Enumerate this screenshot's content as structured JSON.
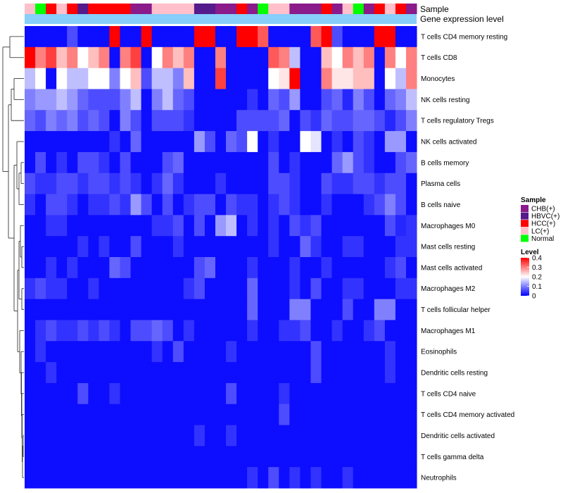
{
  "chart_data": {
    "type": "heatmap",
    "title": "",
    "annotation_tracks": [
      "Sample",
      "Gene expression level"
    ],
    "rows": [
      "T cells CD4 memory resting",
      "T cells CD8",
      "Monocytes",
      "NK cells resting",
      "T cells regulatory  Tregs",
      "NK cells activated",
      "B cells memory",
      "Plasma cells",
      "B cells naive",
      "Macrophages M0",
      "Mast cells resting",
      "Mast cells activated",
      "Macrophages M2",
      "T cells follicular helper",
      "Macrophages M1",
      "Eosinophils",
      "Dendritic cells resting",
      "T cells CD4 naive",
      "T cells CD4 memory activated",
      "Dendritic cells activated",
      "T cells gamma delta",
      "Neutrophils"
    ],
    "sample_groups": [
      "LC(+)",
      "Normal",
      "HCC(+)",
      "LC(+)",
      "HCC(+)",
      "HBVC(+)",
      "HCC(+)",
      "HCC(+)",
      "HCC(+)",
      "HCC(+)",
      "CHB(+)",
      "CHB(+)",
      "LC(+)",
      "LC(+)",
      "LC(+)",
      "LC(+)",
      "HBVC(+)",
      "HBVC(+)",
      "CHB(+)",
      "CHB(+)",
      "HCC(+)",
      "CHB(+)",
      "Normal",
      "LC(+)",
      "LC(+)",
      "CHB(+)",
      "CHB(+)",
      "CHB(+)",
      "HCC(+)",
      "CHB(+)",
      "LC(+)",
      "Normal",
      "CHB(+)",
      "HCC(+)",
      "LC(+)",
      "HCC(+)",
      "CHB(+)"
    ],
    "values": [
      [
        0.01,
        0.01,
        0.01,
        0.01,
        0.06,
        0.01,
        0.01,
        0.01,
        0.4,
        0.01,
        0.01,
        0.4,
        0.01,
        0.01,
        0.01,
        0.01,
        0.4,
        0.4,
        0.01,
        0.01,
        0.4,
        0.4,
        0.33,
        0.01,
        0.01,
        0.01,
        0.01,
        0.33,
        0.4,
        0.06,
        0.01,
        0.01,
        0.01,
        0.4,
        0.4,
        0.01,
        0.01
      ],
      [
        0.4,
        0.3,
        0.35,
        0.25,
        0.3,
        0.2,
        0.25,
        0.3,
        0.01,
        0.3,
        0.35,
        0.01,
        0.2,
        0.3,
        0.25,
        0.3,
        0.01,
        0.01,
        0.3,
        0.01,
        0.01,
        0.01,
        0.01,
        0.33,
        0.3,
        0.15,
        0.01,
        0.01,
        0.25,
        0.2,
        0.3,
        0.25,
        0.3,
        0.01,
        0.3,
        0.2,
        0.3
      ],
      [
        0.15,
        0.2,
        0.01,
        0.2,
        0.15,
        0.15,
        0.2,
        0.2,
        0.1,
        0.2,
        0.25,
        0.06,
        0.15,
        0.15,
        0.1,
        0.25,
        0.01,
        0.01,
        0.35,
        0.01,
        0.01,
        0.01,
        0.01,
        0.2,
        0.22,
        0.4,
        0.01,
        0.01,
        0.3,
        0.22,
        0.22,
        0.25,
        0.25,
        0.01,
        0.2,
        0.15,
        0.3
      ],
      [
        0.1,
        0.12,
        0.12,
        0.15,
        0.12,
        0.08,
        0.06,
        0.06,
        0.06,
        0.1,
        0.15,
        0.01,
        0.1,
        0.15,
        0.08,
        0.06,
        0.01,
        0.01,
        0.01,
        0.01,
        0.01,
        0.04,
        0.01,
        0.08,
        0.06,
        0.12,
        0.01,
        0.01,
        0.06,
        0.08,
        0.03,
        0.1,
        0.06,
        0.01,
        0.08,
        0.1,
        0.15
      ],
      [
        0.08,
        0.06,
        0.1,
        0.08,
        0.1,
        0.06,
        0.08,
        0.06,
        0.01,
        0.1,
        0.06,
        0.01,
        0.06,
        0.06,
        0.06,
        0.04,
        0.01,
        0.01,
        0.01,
        0.01,
        0.06,
        0.06,
        0.06,
        0.06,
        0.08,
        0.01,
        0.06,
        0.04,
        0.08,
        0.06,
        0.06,
        0.08,
        0.08,
        0.06,
        0.03,
        0.06,
        0.1
      ],
      [
        0.01,
        0.01,
        0.01,
        0.01,
        0.01,
        0.01,
        0.01,
        0.01,
        0.04,
        0.01,
        0.08,
        0.01,
        0.01,
        0.01,
        0.01,
        0.01,
        0.12,
        0.06,
        0.01,
        0.08,
        0.06,
        0.2,
        0.01,
        0.04,
        0.01,
        0.01,
        0.2,
        0.18,
        0.01,
        0.04,
        0.01,
        0.06,
        0.04,
        0.01,
        0.12,
        0.12,
        0.01
      ],
      [
        0.01,
        0.06,
        0.01,
        0.04,
        0.01,
        0.06,
        0.06,
        0.04,
        0.01,
        0.06,
        0.01,
        0.01,
        0.01,
        0.06,
        0.08,
        0.01,
        0.01,
        0.01,
        0.01,
        0.01,
        0.01,
        0.01,
        0.01,
        0.06,
        0.01,
        0.04,
        0.01,
        0.01,
        0.01,
        0.08,
        0.12,
        0.06,
        0.04,
        0.01,
        0.01,
        0.06,
        0.08
      ],
      [
        0.06,
        0.04,
        0.04,
        0.06,
        0.06,
        0.04,
        0.06,
        0.06,
        0.04,
        0.06,
        0.04,
        0.01,
        0.04,
        0.08,
        0.04,
        0.01,
        0.01,
        0.01,
        0.04,
        0.01,
        0.01,
        0.01,
        0.01,
        0.06,
        0.06,
        0.04,
        0.01,
        0.01,
        0.06,
        0.04,
        0.04,
        0.06,
        0.06,
        0.04,
        0.06,
        0.06,
        0.01
      ],
      [
        0.04,
        0.01,
        0.06,
        0.06,
        0.04,
        0.01,
        0.04,
        0.04,
        0.06,
        0.04,
        0.12,
        0.06,
        0.01,
        0.06,
        0.01,
        0.04,
        0.06,
        0.06,
        0.01,
        0.06,
        0.04,
        0.04,
        0.01,
        0.04,
        0.06,
        0.04,
        0.01,
        0.01,
        0.04,
        0.01,
        0.01,
        0.01,
        0.04,
        0.06,
        0.1,
        0.06,
        0.01
      ],
      [
        0.01,
        0.01,
        0.04,
        0.04,
        0.01,
        0.01,
        0.01,
        0.01,
        0.01,
        0.01,
        0.01,
        0.01,
        0.04,
        0.04,
        0.06,
        0.01,
        0.06,
        0.01,
        0.12,
        0.15,
        0.01,
        0.04,
        0.01,
        0.04,
        0.01,
        0.06,
        0.04,
        0.06,
        0.01,
        0.01,
        0.01,
        0.01,
        0.01,
        0.01,
        0.06,
        0.03,
        0.04
      ],
      [
        0.01,
        0.01,
        0.01,
        0.01,
        0.01,
        0.04,
        0.01,
        0.04,
        0.01,
        0.01,
        0.06,
        0.01,
        0.01,
        0.01,
        0.04,
        0.01,
        0.01,
        0.01,
        0.01,
        0.01,
        0.01,
        0.01,
        0.01,
        0.04,
        0.01,
        0.01,
        0.08,
        0.04,
        0.01,
        0.01,
        0.04,
        0.04,
        0.01,
        0.01,
        0.01,
        0.04,
        0.04
      ],
      [
        0.01,
        0.01,
        0.04,
        0.01,
        0.04,
        0.01,
        0.01,
        0.01,
        0.08,
        0.06,
        0.01,
        0.01,
        0.01,
        0.01,
        0.01,
        0.01,
        0.06,
        0.08,
        0.01,
        0.01,
        0.01,
        0.04,
        0.01,
        0.01,
        0.01,
        0.04,
        0.01,
        0.01,
        0.04,
        0.01,
        0.01,
        0.01,
        0.01,
        0.01,
        0.04,
        0.06,
        0.01
      ],
      [
        0.04,
        0.06,
        0.04,
        0.04,
        0.01,
        0.01,
        0.04,
        0.01,
        0.01,
        0.01,
        0.01,
        0.01,
        0.01,
        0.01,
        0.01,
        0.04,
        0.06,
        0.01,
        0.01,
        0.01,
        0.01,
        0.08,
        0.01,
        0.01,
        0.01,
        0.04,
        0.01,
        0.06,
        0.01,
        0.01,
        0.04,
        0.04,
        0.01,
        0.01,
        0.01,
        0.04,
        0.04
      ],
      [
        0.01,
        0.01,
        0.01,
        0.01,
        0.01,
        0.01,
        0.01,
        0.01,
        0.01,
        0.01,
        0.01,
        0.01,
        0.01,
        0.01,
        0.01,
        0.01,
        0.01,
        0.01,
        0.01,
        0.01,
        0.01,
        0.08,
        0.01,
        0.01,
        0.01,
        0.1,
        0.1,
        0.01,
        0.01,
        0.01,
        0.06,
        0.01,
        0.01,
        0.1,
        0.1,
        0.01,
        0.01
      ],
      [
        0.01,
        0.04,
        0.06,
        0.04,
        0.04,
        0.06,
        0.04,
        0.06,
        0.04,
        0.01,
        0.06,
        0.06,
        0.08,
        0.06,
        0.01,
        0.04,
        0.01,
        0.01,
        0.01,
        0.01,
        0.01,
        0.04,
        0.01,
        0.01,
        0.04,
        0.04,
        0.06,
        0.01,
        0.01,
        0.04,
        0.01,
        0.01,
        0.04,
        0.06,
        0.01,
        0.01,
        0.01
      ],
      [
        0.01,
        0.04,
        0.01,
        0.01,
        0.01,
        0.01,
        0.01,
        0.01,
        0.01,
        0.01,
        0.01,
        0.01,
        0.04,
        0.01,
        0.06,
        0.01,
        0.01,
        0.01,
        0.01,
        0.04,
        0.01,
        0.01,
        0.01,
        0.01,
        0.01,
        0.01,
        0.01,
        0.06,
        0.01,
        0.01,
        0.01,
        0.01,
        0.01,
        0.01,
        0.04,
        0.01,
        0.01
      ],
      [
        0.01,
        0.01,
        0.04,
        0.01,
        0.01,
        0.01,
        0.01,
        0.01,
        0.01,
        0.01,
        0.01,
        0.01,
        0.01,
        0.01,
        0.01,
        0.01,
        0.01,
        0.01,
        0.01,
        0.01,
        0.01,
        0.01,
        0.01,
        0.01,
        0.01,
        0.01,
        0.01,
        0.06,
        0.01,
        0.01,
        0.01,
        0.01,
        0.01,
        0.01,
        0.04,
        0.01,
        0.01
      ],
      [
        0.01,
        0.01,
        0.01,
        0.01,
        0.01,
        0.06,
        0.01,
        0.01,
        0.04,
        0.01,
        0.01,
        0.01,
        0.01,
        0.01,
        0.01,
        0.01,
        0.01,
        0.01,
        0.01,
        0.06,
        0.01,
        0.01,
        0.01,
        0.01,
        0.04,
        0.01,
        0.01,
        0.01,
        0.01,
        0.01,
        0.01,
        0.01,
        0.01,
        0.01,
        0.01,
        0.01,
        0.01
      ],
      [
        0.01,
        0.01,
        0.01,
        0.01,
        0.01,
        0.01,
        0.01,
        0.01,
        0.01,
        0.01,
        0.01,
        0.01,
        0.01,
        0.01,
        0.01,
        0.01,
        0.01,
        0.01,
        0.01,
        0.01,
        0.01,
        0.01,
        0.01,
        0.01,
        0.06,
        0.01,
        0.01,
        0.01,
        0.01,
        0.01,
        0.01,
        0.01,
        0.01,
        0.01,
        0.01,
        0.01,
        0.01
      ],
      [
        0.01,
        0.01,
        0.01,
        0.01,
        0.01,
        0.01,
        0.01,
        0.01,
        0.01,
        0.01,
        0.01,
        0.01,
        0.01,
        0.01,
        0.01,
        0.01,
        0.04,
        0.01,
        0.01,
        0.04,
        0.01,
        0.01,
        0.01,
        0.01,
        0.01,
        0.01,
        0.01,
        0.01,
        0.01,
        0.01,
        0.01,
        0.01,
        0.01,
        0.01,
        0.01,
        0.01,
        0.01
      ],
      [
        0.01,
        0.01,
        0.01,
        0.01,
        0.01,
        0.01,
        0.01,
        0.01,
        0.01,
        0.01,
        0.01,
        0.01,
        0.01,
        0.01,
        0.01,
        0.01,
        0.01,
        0.01,
        0.01,
        0.01,
        0.01,
        0.01,
        0.01,
        0.01,
        0.01,
        0.01,
        0.01,
        0.01,
        0.01,
        0.01,
        0.01,
        0.01,
        0.01,
        0.01,
        0.01,
        0.01,
        0.01
      ],
      [
        0.01,
        0.01,
        0.01,
        0.01,
        0.01,
        0.01,
        0.01,
        0.01,
        0.01,
        0.01,
        0.01,
        0.01,
        0.01,
        0.01,
        0.01,
        0.01,
        0.01,
        0.01,
        0.01,
        0.01,
        0.01,
        0.04,
        0.01,
        0.06,
        0.01,
        0.04,
        0.01,
        0.04,
        0.01,
        0.01,
        0.04,
        0.01,
        0.01,
        0.01,
        0.01,
        0.01,
        0.01
      ]
    ],
    "legends": {
      "sample": {
        "title": "Sample",
        "entries": [
          {
            "label": "CHB(+)",
            "color": "#8B1A8B"
          },
          {
            "label": "HBVC(+)",
            "color": "#551A8B"
          },
          {
            "label": "HCC(+)",
            "color": "#FF0000"
          },
          {
            "label": "LC(+)",
            "color": "#FFC0CB"
          },
          {
            "label": "Normal",
            "color": "#00FF00"
          }
        ]
      },
      "level": {
        "title": "Level",
        "ticks": [
          "0.4",
          "0.3",
          "0.2",
          "0.1",
          "0"
        ],
        "tick_values": [
          0.4,
          0.3,
          0.2,
          0.1,
          0
        ],
        "range": [
          0,
          0.4
        ]
      }
    },
    "colors": {
      "low": "#0000FF",
      "mid": "#FFFFFF",
      "high": "#FF0000",
      "mid_value": 0.2,
      "expression_track": "#87CEFA"
    }
  }
}
